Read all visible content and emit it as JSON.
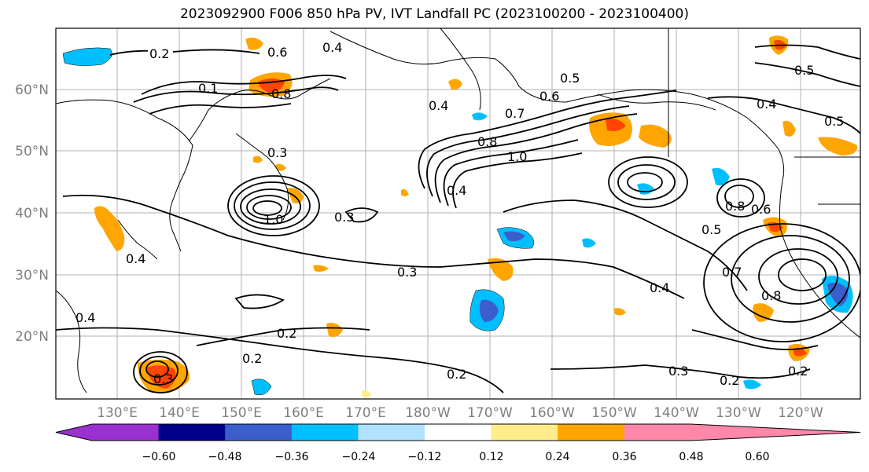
{
  "title": "2023092900 F006 850 hPa PV, IVT Landfall PC (2023100200 - 2023100400)",
  "lat_labels": [
    "60°N",
    "50°N",
    "40°N",
    "30°N",
    "20°N"
  ],
  "lon_labels": [
    "130°E",
    "140°E",
    "150°E",
    "160°E",
    "170°E",
    "180°W",
    "170°W",
    "160°W",
    "150°W",
    "140°W",
    "130°W",
    "120°W"
  ],
  "colorbar": {
    "tick_labels": [
      "−0.60",
      "−0.48",
      "−0.36",
      "−0.24",
      "−0.12",
      "0.12",
      "0.24",
      "0.36",
      "0.48",
      "0.60"
    ],
    "colors": [
      "#9b30d0",
      "#00008b",
      "#3a5fcd",
      "#00bfff",
      "#b0e2ff",
      "#ffffff",
      "#ffec8b",
      "#ffa500",
      "#ff4500",
      "#b22222",
      "#ff88aa"
    ]
  },
  "contour_labels": [
    {
      "text": "0.2"
    },
    {
      "text": "0.6"
    },
    {
      "text": "0.4"
    },
    {
      "text": "0.1"
    },
    {
      "text": "0.8"
    },
    {
      "text": "0.4"
    },
    {
      "text": "0.7"
    },
    {
      "text": "0.5"
    },
    {
      "text": "0.6"
    },
    {
      "text": "0.8"
    },
    {
      "text": "1.0"
    },
    {
      "text": "0.4"
    },
    {
      "text": "0.3"
    },
    {
      "text": "1.0"
    },
    {
      "text": "0.3"
    },
    {
      "text": "0.3"
    },
    {
      "text": "0.2"
    },
    {
      "text": "0.2"
    },
    {
      "text": "0.2"
    },
    {
      "text": "0.3"
    },
    {
      "text": "0.4"
    },
    {
      "text": "0.5"
    },
    {
      "text": "0.6"
    },
    {
      "text": "0.8"
    },
    {
      "text": "0.7"
    },
    {
      "text": "0.8"
    },
    {
      "text": "0.4"
    },
    {
      "text": "0.5"
    },
    {
      "text": "0.5"
    },
    {
      "text": "0.2"
    },
    {
      "text": "0.2"
    },
    {
      "text": "0.4"
    },
    {
      "text": "0.3"
    },
    {
      "text": "0.4"
    }
  ]
}
